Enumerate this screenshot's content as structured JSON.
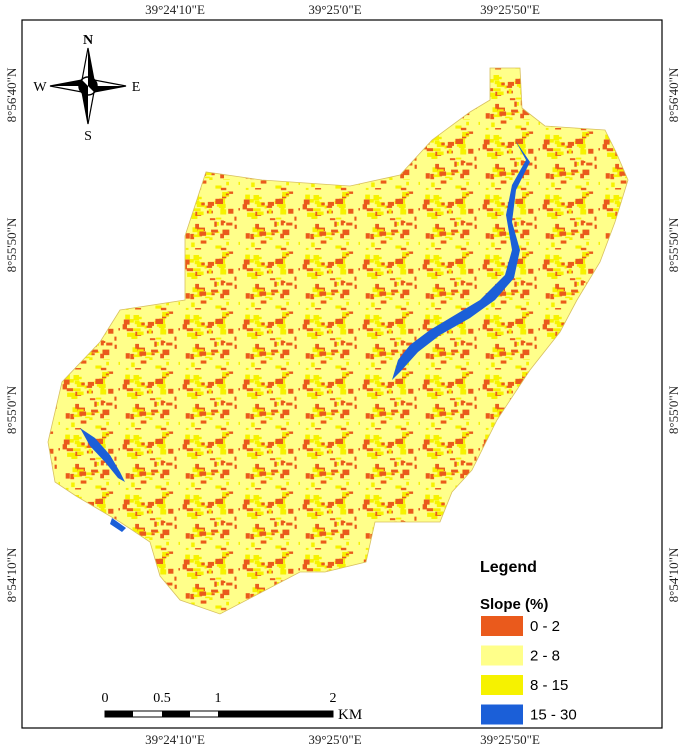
{
  "map": {
    "coordinates": {
      "top": [
        "39°24'10\"E",
        "39°25'0\"E",
        "39°25'50\"E"
      ],
      "bottom": [
        "39°24'10\"E",
        "39°25'0\"E",
        "39°25'50\"E"
      ],
      "left": [
        "8°56'40\"N",
        "8°55'50\"N",
        "8°55'0\"N",
        "8°54'10\"N"
      ],
      "right": [
        "8°56'40\"N",
        "8°55'50\"N",
        "8°55'0\"N",
        "8°54'10\"N"
      ]
    },
    "north_arrow": {
      "n": "N",
      "s": "S",
      "e": "E",
      "w": "W"
    },
    "legend": {
      "title": "Legend",
      "subtitle": "Slope (%)",
      "items": [
        {
          "label": "0 - 2",
          "color": "#ea5a1c"
        },
        {
          "label": "2 - 8",
          "color": "#ffff8a"
        },
        {
          "label": "8 - 15",
          "color": "#f6f200"
        },
        {
          "label": "15 - 30",
          "color": "#1b5fd8"
        }
      ]
    },
    "scale_bar": {
      "labels": [
        "0",
        "0.5",
        "1",
        "2"
      ],
      "unit": "KM"
    }
  }
}
